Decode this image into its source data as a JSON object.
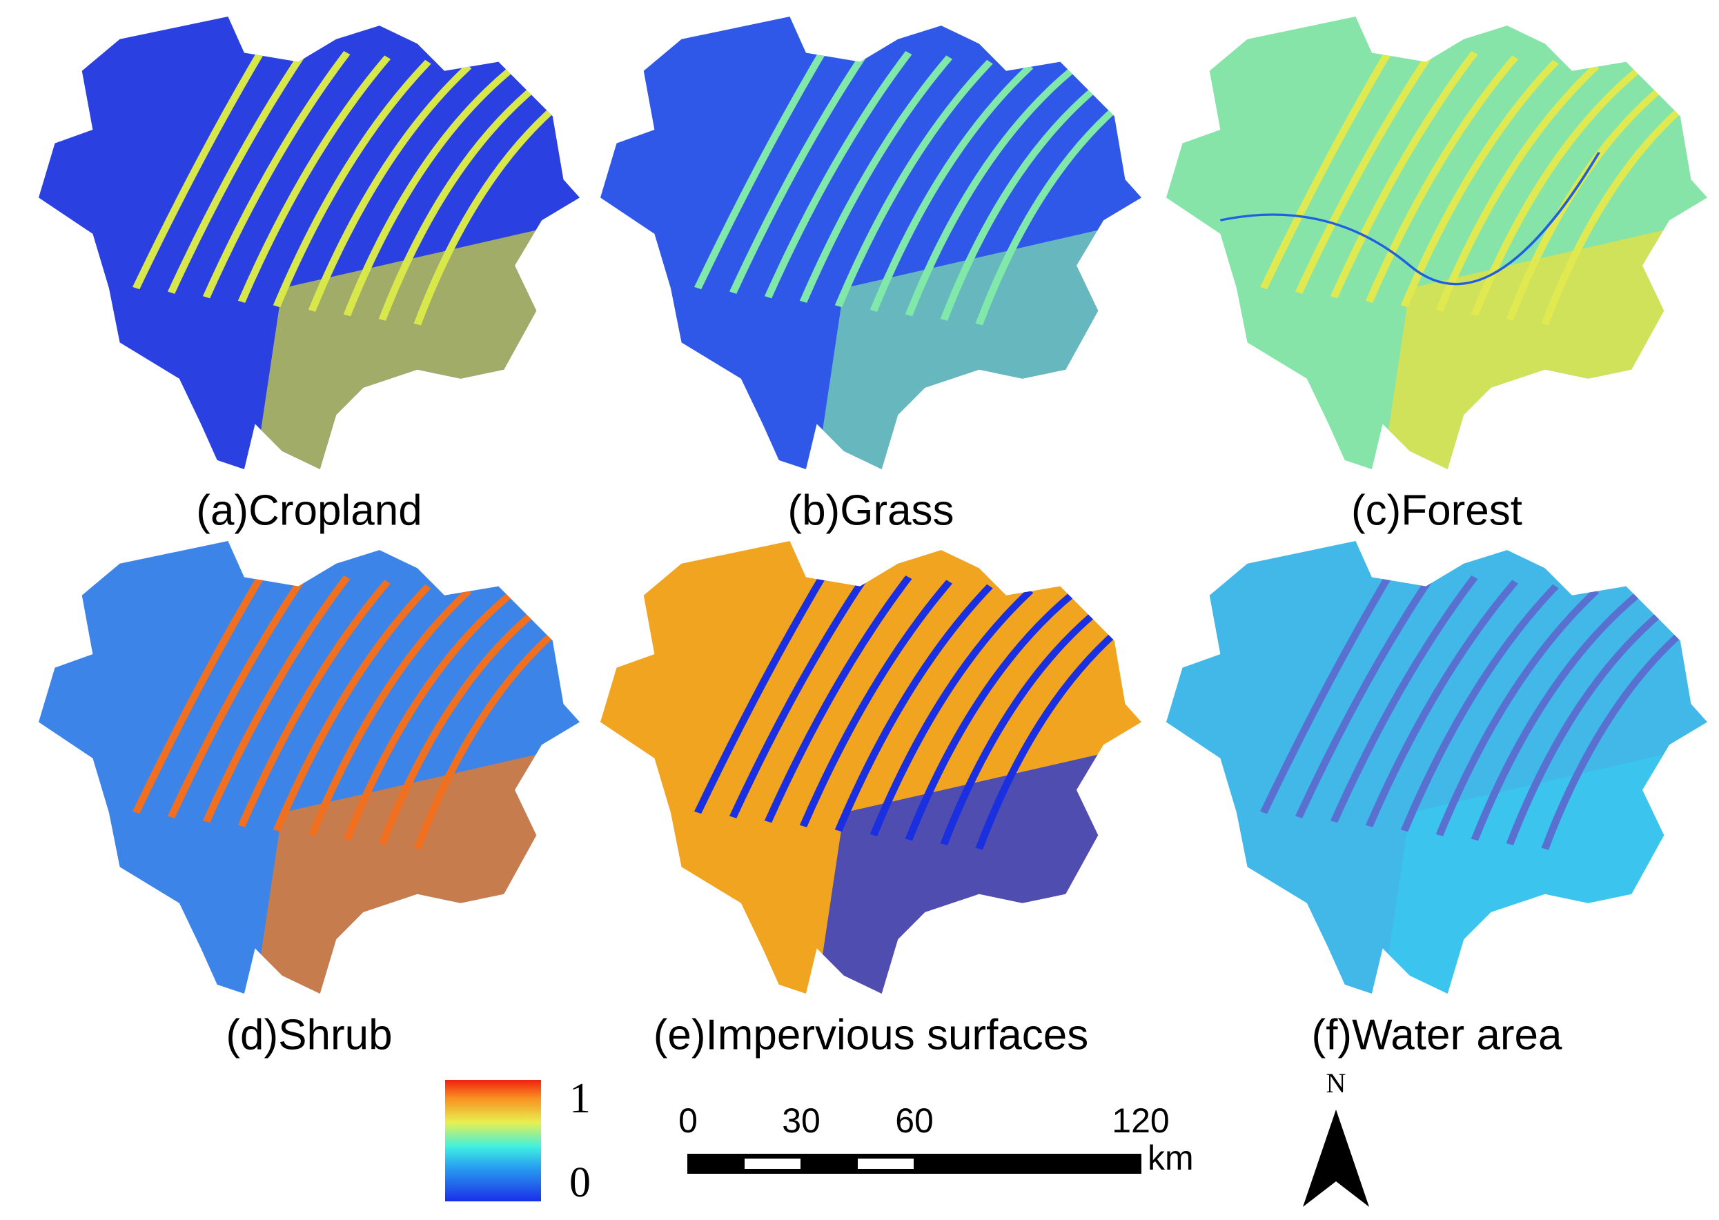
{
  "panels": [
    {
      "label": "(a)Cropland"
    },
    {
      "label": "(b)Grass"
    },
    {
      "label": "(c)Forest"
    },
    {
      "label": "(d)Shrub"
    },
    {
      "label": "(e)Impervious surfaces"
    },
    {
      "label": "(f)Water area"
    }
  ],
  "legend": {
    "max": 1,
    "min": 0
  },
  "scale_bar": {
    "ticks": [
      0,
      30,
      60,
      120
    ],
    "unit": "km"
  },
  "north": "N"
}
